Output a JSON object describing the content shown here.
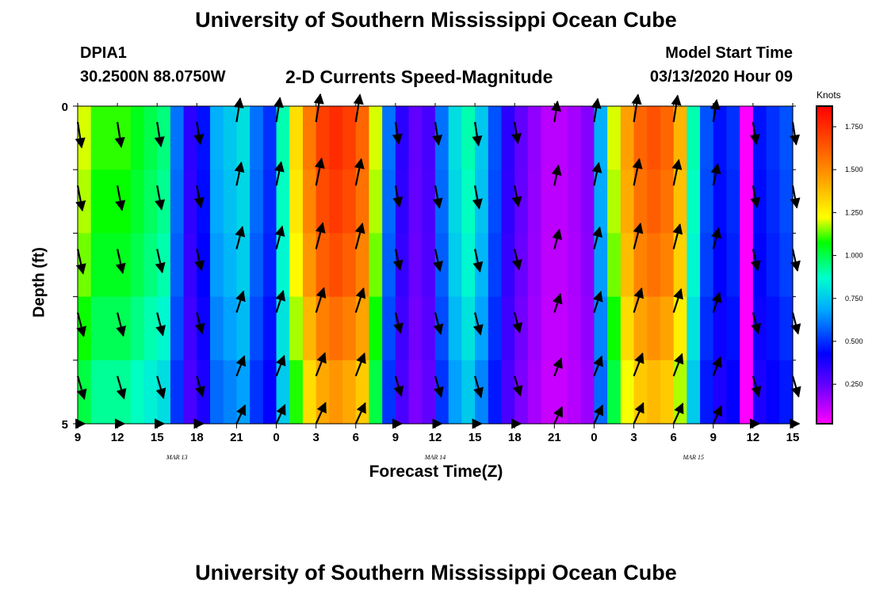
{
  "page": {
    "title_top": "University of Southern Mississippi Ocean Cube",
    "title_bottom": "University of Southern Mississippi Ocean Cube",
    "station": "DPIA1",
    "coords": "30.2500N 88.0750W",
    "subtitle": "2-D Currents Speed-Magnitude",
    "model_start_label": "Model Start Time",
    "model_start_value": "03/13/2020 Hour 09"
  },
  "chart_data": {
    "type": "heatmap",
    "title": "2-D Currents Speed-Magnitude",
    "xlabel": "Forecast Time(Z)",
    "ylabel": "Depth (ft)",
    "x_hours": [
      0,
      54
    ],
    "x_tick_labels": [
      "9",
      "12",
      "15",
      "18",
      "21",
      "0",
      "3",
      "6",
      "9",
      "12",
      "15",
      "18",
      "21",
      "0",
      "3",
      "6",
      "9",
      "12",
      "15"
    ],
    "date_labels": [
      {
        "label": "MAR 13",
        "hour": 7.5
      },
      {
        "label": "MAR 14",
        "hour": 27
      },
      {
        "label": "MAR 15",
        "hour": 46.5
      }
    ],
    "y_tick_labels": [
      "0",
      "5"
    ],
    "ylim": [
      0,
      5
    ],
    "depth_levels": [
      0,
      1,
      2,
      3,
      4,
      5
    ],
    "colorbar": {
      "title": "Knots",
      "range": [
        0.02,
        1.87
      ],
      "ticks": [
        "0.250",
        "0.500",
        "0.750",
        "1.000",
        "1.250",
        "1.500",
        "1.750"
      ],
      "tick_values": [
        0.25,
        0.5,
        0.75,
        1.0,
        1.25,
        1.5,
        1.75
      ]
    },
    "time_step_hours": 1,
    "speed_profile_knots": [
      1.2,
      1.1,
      1.1,
      1.1,
      1.05,
      1.0,
      0.95,
      0.6,
      0.35,
      0.45,
      0.7,
      0.75,
      0.8,
      0.6,
      0.5,
      0.9,
      1.3,
      1.55,
      1.7,
      1.75,
      1.7,
      1.6,
      1.2,
      0.6,
      0.35,
      0.25,
      0.3,
      0.6,
      0.8,
      0.9,
      0.75,
      0.55,
      0.35,
      0.25,
      0.18,
      0.12,
      0.12,
      0.15,
      0.2,
      0.7,
      1.2,
      1.45,
      1.6,
      1.65,
      1.6,
      1.4,
      0.9,
      0.55,
      0.45,
      0.5,
      0.02,
      0.45,
      0.5,
      0.55
    ],
    "depth_factors": [
      1.0,
      0.98,
      0.95,
      0.9,
      0.84,
      0.7
    ],
    "vector_hours": [
      0,
      3,
      6,
      9,
      12,
      15,
      18,
      21,
      24,
      27,
      30,
      33,
      36,
      39,
      42,
      45,
      48,
      51,
      54
    ],
    "vector_depths": [
      0.25,
      1.25,
      2.25,
      3.25,
      4.25,
      5.0
    ]
  }
}
